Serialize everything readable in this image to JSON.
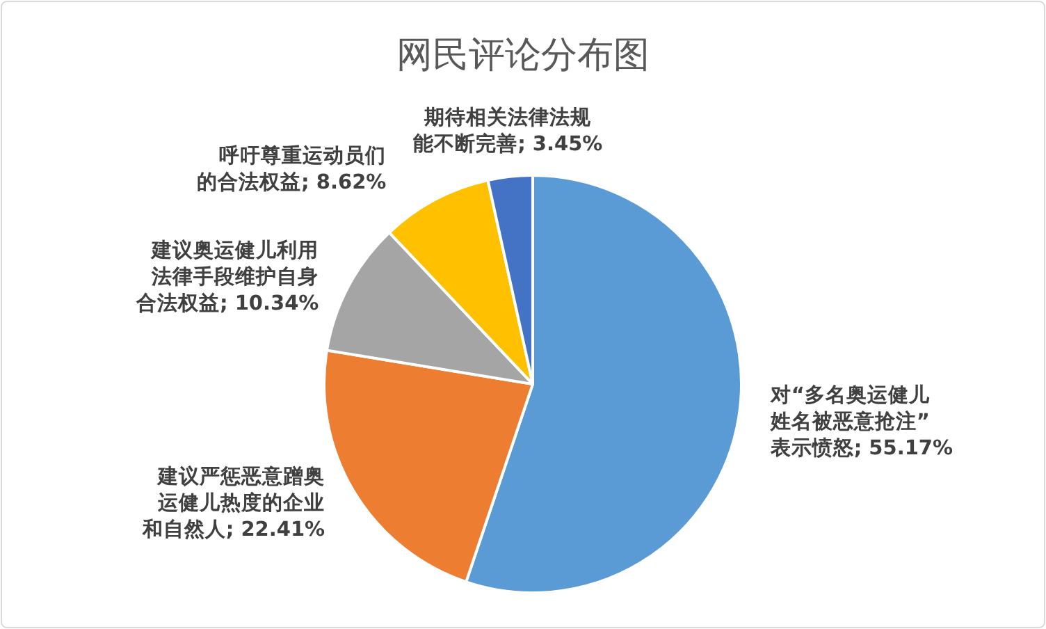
{
  "chart_data": {
    "type": "pie",
    "title": "网民评论分布图",
    "categories": [
      "对“多名奥运健儿姓名被恶意抢注”表示愤怒",
      "建议严惩恶意蹭奥运健儿热度的企业和自然人",
      "建议奥运健儿利用法律手段维护自身合法权益",
      "呼吁尊重运动员们的合法权益",
      "期待相关法律法规能不断完善"
    ],
    "values": [
      55.17,
      22.41,
      10.34,
      8.62,
      3.45
    ],
    "value_labels": [
      "55.17%",
      "22.41%",
      "10.34%",
      "8.62%",
      "3.45%"
    ],
    "colors": [
      "#5b9bd5",
      "#ed7d31",
      "#a5a5a5",
      "#ffc000",
      "#4472c4"
    ]
  }
}
